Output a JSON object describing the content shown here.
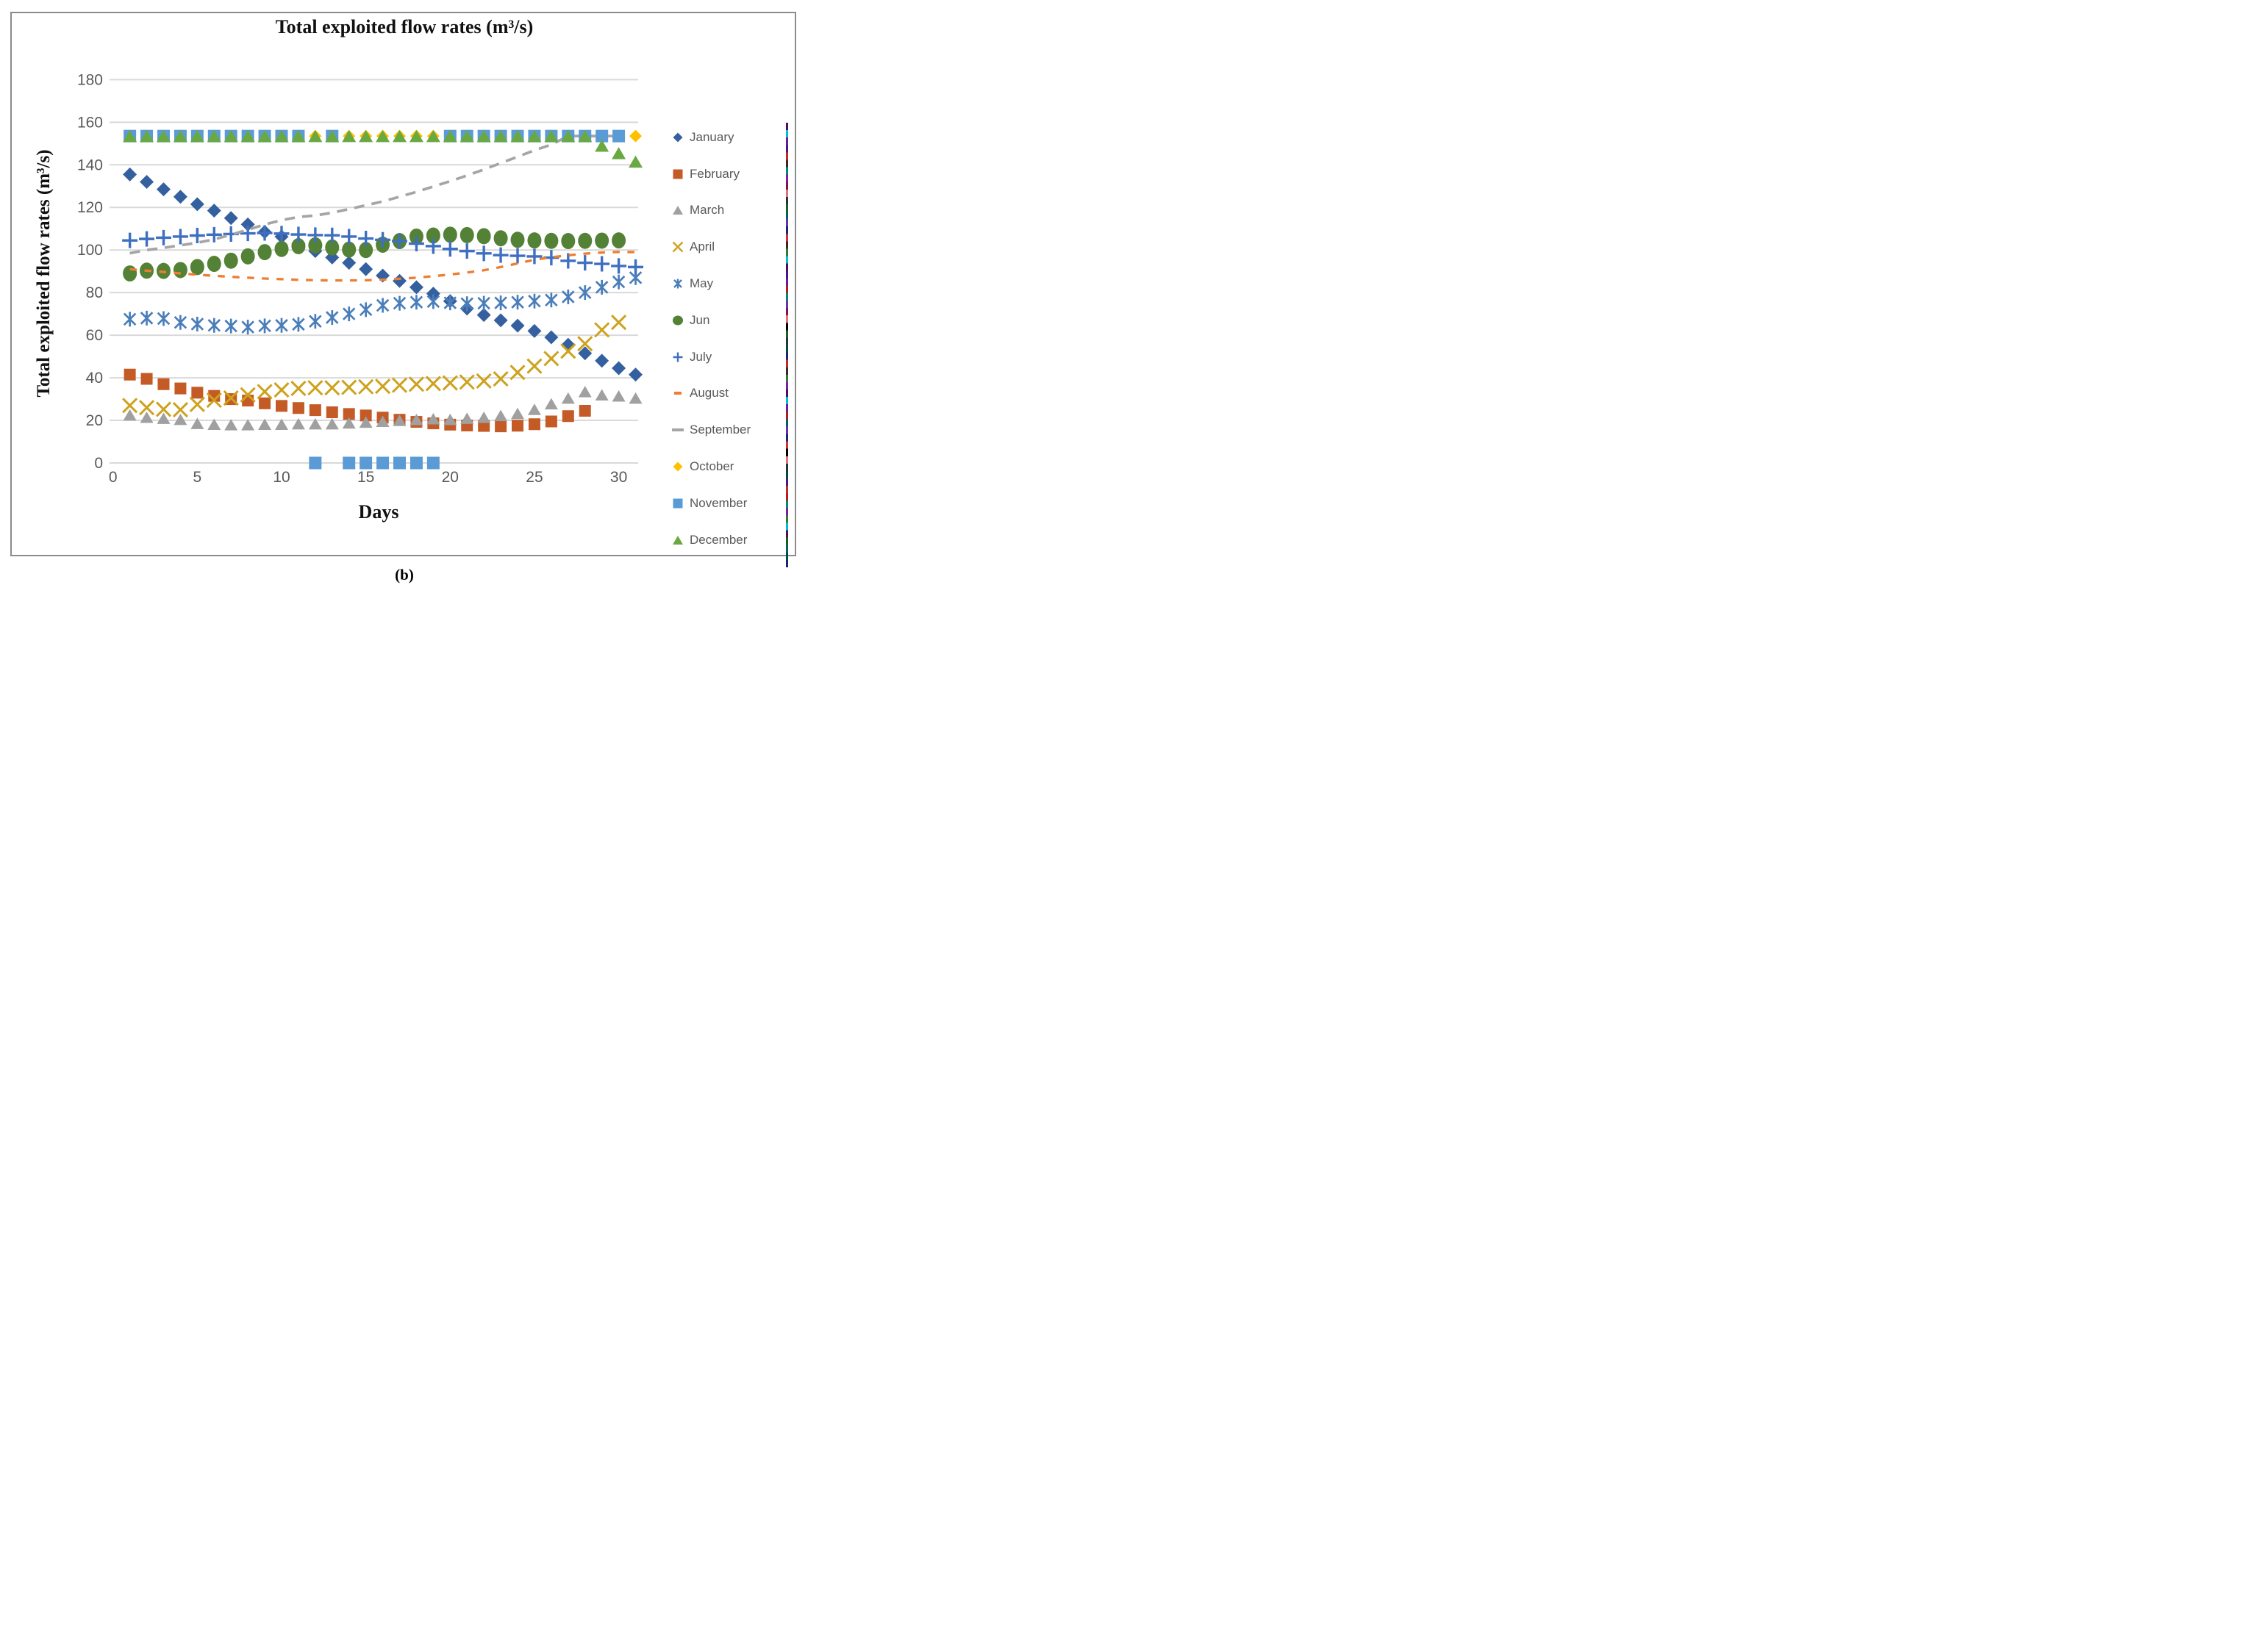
{
  "figure": {
    "title": "Total exploited flow rates (m³/s)",
    "caption": "(b)"
  },
  "axes": {
    "x_label": "Days",
    "y_label": "Total exploited  flow rates (m³/s)",
    "x_ticks": [
      0,
      5,
      10,
      15,
      20,
      25,
      30
    ],
    "y_ticks": [
      0,
      20,
      40,
      60,
      80,
      100,
      120,
      140,
      160,
      180
    ],
    "x_range": [
      0,
      31
    ],
    "y_range": [
      0,
      180
    ],
    "grid": true,
    "gridline_color": "#d9d9d9",
    "tick_color": "#595959"
  },
  "legend_position": "right",
  "chart_data": {
    "type": "scatter",
    "x_unit": "day of month",
    "title": "Total exploited flow rates (m³/s)",
    "xlabel": "Days",
    "ylabel": "Total exploited  flow rates (m³/s)",
    "ylim": [
      0,
      180
    ],
    "xlim": [
      0,
      31
    ],
    "series": [
      {
        "name": "January",
        "marker": "diamond",
        "style": "markers",
        "color": "#35609f",
        "values": [
          135.5,
          132,
          128.5,
          125,
          121.5,
          118.5,
          115,
          112,
          108.5,
          106.3,
          103,
          99.5,
          96.5,
          94,
          91,
          88,
          85.5,
          82.5,
          79.5,
          76,
          72.5,
          69.5,
          67,
          64.5,
          62,
          59,
          55.5,
          51.5,
          48,
          44.5,
          41.5
        ]
      },
      {
        "name": "February",
        "marker": "square",
        "style": "markers",
        "color": "#c45b26",
        "values": [
          41.5,
          39.5,
          37,
          35,
          33,
          31.5,
          30,
          29.3,
          28,
          26.8,
          25.8,
          24.8,
          23.8,
          23,
          22.3,
          21.3,
          20.3,
          19.3,
          18.6,
          18,
          17.6,
          17.4,
          17.2,
          17.5,
          18.2,
          19.5,
          22,
          24.5
        ]
      },
      {
        "name": "March",
        "marker": "triangle",
        "style": "markers",
        "color": "#a0a0a0",
        "values": [
          22.6,
          21.5,
          21,
          20.5,
          18.6,
          18.2,
          18,
          18,
          18.2,
          18.2,
          18.4,
          18.4,
          18.4,
          18.8,
          19.2,
          19.6,
          20,
          20.4,
          20.8,
          20.5,
          21,
          21.5,
          22.3,
          23.3,
          25.2,
          27.8,
          30.5,
          33.5,
          32,
          31.5,
          30.5
        ]
      },
      {
        "name": "April",
        "marker": "x",
        "style": "markers",
        "color": "#cda21c",
        "values": [
          27,
          26,
          25.2,
          25,
          27.5,
          29.5,
          30.5,
          32,
          33.5,
          34.3,
          35,
          35.3,
          35.3,
          35.5,
          35.8,
          36,
          36.5,
          37,
          37.3,
          37.6,
          38,
          38.5,
          39.5,
          42.5,
          45.5,
          49,
          52.5,
          56,
          62.5,
          66
        ]
      },
      {
        "name": "May",
        "marker": "star",
        "style": "markers",
        "color": "#4a7eba",
        "values": [
          67.5,
          68,
          67.8,
          66,
          65.2,
          64.6,
          64.3,
          63.8,
          64.4,
          64.6,
          65.1,
          66.5,
          68.3,
          70,
          72,
          74,
          75,
          75.5,
          75.8,
          75.2,
          74.8,
          75,
          75.2,
          75.5,
          76,
          76.5,
          78,
          80,
          82.5,
          85,
          87
        ]
      },
      {
        "name": "Jun",
        "marker": "circle",
        "style": "markers",
        "color": "#538135",
        "values": [
          89,
          90.3,
          90.2,
          90.6,
          92,
          93.5,
          95,
          97,
          99,
          100.5,
          101.8,
          102.2,
          101.2,
          100.2,
          100,
          102.5,
          104.2,
          106.3,
          106.8,
          107.2,
          107,
          106.5,
          105.5,
          104.8,
          104.5,
          104.3,
          104.2,
          104.3,
          104.4,
          104.5
        ]
      },
      {
        "name": "July",
        "marker": "plus",
        "style": "markers",
        "color": "#3e6fc1",
        "values": [
          104.5,
          105.2,
          105.8,
          106.3,
          106.8,
          107.2,
          107.5,
          107.8,
          108,
          107.7,
          107.3,
          107,
          106.9,
          106.3,
          105.4,
          104.8,
          104.2,
          103,
          101.8,
          100.5,
          99.5,
          98.4,
          97.6,
          97.3,
          97,
          96.4,
          94.9,
          94,
          93.5,
          92.5,
          92
        ]
      },
      {
        "name": "August",
        "marker": "dash",
        "style": "dashed-line",
        "color": "#ed7d31",
        "values": [
          91,
          90.3,
          89.7,
          89,
          88.4,
          87.9,
          87.4,
          87,
          86.6,
          86.3,
          86,
          85.8,
          85.7,
          85.7,
          85.8,
          86.1,
          86.5,
          87,
          87.7,
          88.5,
          89.4,
          90.5,
          92,
          93.7,
          95.4,
          96.6,
          97.5,
          98.3,
          98.8,
          99.1,
          99
        ]
      },
      {
        "name": "September",
        "marker": "long-dash",
        "style": "dashed-line",
        "color": "#a5a5a5",
        "values": [
          98.5,
          100,
          101,
          102.2,
          103.4,
          105,
          107.2,
          109.5,
          112,
          114,
          115.5,
          116.2,
          117.5,
          119.2,
          121,
          122.8,
          125,
          127.3,
          129.8,
          132.3,
          135,
          137.8,
          140.8,
          143.8,
          146.8,
          149.5,
          153.5,
          153.5,
          153.5,
          153.5
        ]
      },
      {
        "name": "October",
        "marker": "diamond",
        "style": "markers",
        "color": "#ffc000",
        "values": [
          153.5,
          153.5,
          153.5,
          153.5,
          153.5,
          153.5,
          153.5,
          153.5,
          153.5,
          153.5,
          153.5,
          153.5,
          153.5,
          153.5,
          153.5,
          153.5,
          153.5,
          153.5,
          153.5,
          153.5,
          153.5,
          153.5,
          153.5,
          153.5,
          153.5,
          153.5,
          153.5,
          153.5,
          153.5,
          153.5,
          153.5
        ]
      },
      {
        "name": "November",
        "marker": "square",
        "style": "markers",
        "color": "#5b9bd5",
        "values": [
          153.5,
          153.5,
          153.5,
          153.5,
          153.5,
          153.5,
          153.5,
          153.5,
          153.5,
          153.5,
          153.5,
          0,
          153.5,
          0,
          0,
          0,
          0,
          0,
          0,
          153.5,
          153.5,
          153.5,
          153.5,
          153.5,
          153.5,
          153.5,
          153.5,
          153.5,
          153.5,
          153.5
        ]
      },
      {
        "name": "December",
        "marker": "triangle",
        "style": "markers",
        "color": "#6aa842",
        "values": [
          153.5,
          153.5,
          153.5,
          153.5,
          153.5,
          153.5,
          153.5,
          153.5,
          153.5,
          153.5,
          153.5,
          153.5,
          153.5,
          153.5,
          153.5,
          153.5,
          153.5,
          153.5,
          153.5,
          153.5,
          153.5,
          153.5,
          153.5,
          153.5,
          153.5,
          153.5,
          153.5,
          153.5,
          149,
          145.5,
          141.5
        ]
      }
    ]
  }
}
